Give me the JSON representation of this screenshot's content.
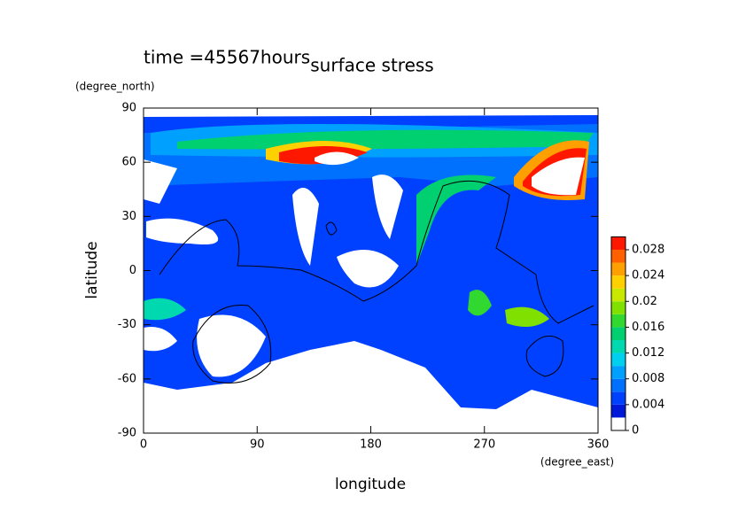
{
  "chart_data": {
    "type": "contour",
    "title": "surface stress",
    "annotation": "time =45567hours",
    "xlabel": "longitude",
    "ylabel": "latitude",
    "xunit": "(degree_east)",
    "yunit": "(degree_north)",
    "xlim": [
      0,
      360
    ],
    "xticks": [
      0,
      90,
      180,
      270,
      360
    ],
    "ylim": [
      -90,
      90
    ],
    "yticks": [
      -90,
      -60,
      -30,
      0,
      30,
      60,
      90
    ],
    "clim": [
      0,
      0.03
    ],
    "cticks": [
      0,
      0.004,
      0.008,
      0.012,
      0.016,
      0.02,
      0.024,
      0.028
    ],
    "colors": [
      "#ffffff",
      "#0018d8",
      "#0040ff",
      "#0070ff",
      "#00a0ff",
      "#00d0f0",
      "#00d8b0",
      "#00d070",
      "#30d830",
      "#80e000",
      "#c8e800",
      "#ffd000",
      "#ffa000",
      "#ff6000",
      "#ff1800"
    ]
  }
}
